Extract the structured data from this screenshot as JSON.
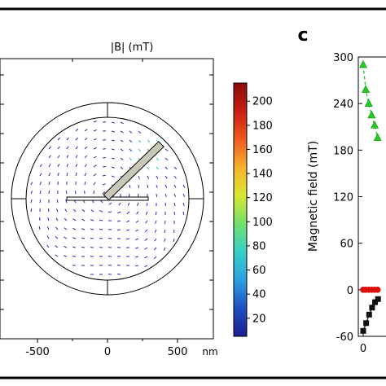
{
  "left_panel": {
    "title": "|B| (mT)",
    "x_ticks": [
      {
        "label": "-500",
        "value": -500
      },
      {
        "label": "0",
        "value": 0
      },
      {
        "label": "500",
        "value": 500
      }
    ],
    "x_unit": "nm",
    "colorbar": {
      "ticks": [
        20,
        40,
        60,
        80,
        100,
        120,
        140,
        160,
        180,
        200
      ],
      "range": [
        5,
        215
      ],
      "colormap": [
        "#1b1f8f",
        "#1f4fc4",
        "#2aa0e0",
        "#35d0c8",
        "#6fe06a",
        "#d8e633",
        "#f6b32a",
        "#ef5a1d",
        "#c91d14",
        "#8b0c0c"
      ]
    }
  },
  "chart_data": {
    "type": "scatter",
    "panel_label": "c",
    "ylabel": "Magnetic field (mT)",
    "ylim": [
      -60,
      300
    ],
    "y_ticks": [
      -60,
      0,
      60,
      120,
      180,
      240,
      300
    ],
    "x_ticks": [
      0
    ],
    "series": [
      {
        "color": "#22cc22",
        "marker": "triangle",
        "line": "dashed",
        "points": [
          [
            0,
            290
          ],
          [
            0.6,
            258
          ],
          [
            1.3,
            240
          ],
          [
            2.0,
            225
          ],
          [
            2.7,
            212
          ],
          [
            3.4,
            196
          ]
        ]
      },
      {
        "color": "#dd1111",
        "marker": "circle",
        "line": "solid",
        "points": [
          [
            0,
            0
          ],
          [
            0.6,
            0
          ],
          [
            1.3,
            0
          ],
          [
            2.0,
            0
          ],
          [
            2.7,
            0
          ],
          [
            3.4,
            0
          ]
        ]
      },
      {
        "color": "#111111",
        "marker": "square",
        "line": "solid",
        "points": [
          [
            0,
            -53
          ],
          [
            0.7,
            -43
          ],
          [
            1.4,
            -32
          ],
          [
            2.1,
            -23
          ],
          [
            2.8,
            -16
          ],
          [
            3.5,
            -12
          ]
        ]
      }
    ]
  }
}
